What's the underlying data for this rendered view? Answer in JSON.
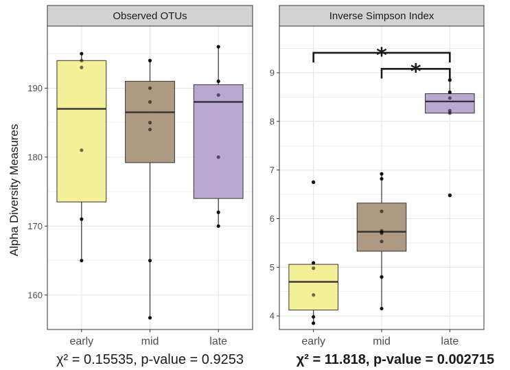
{
  "chart_data": [
    {
      "type": "box",
      "facet_title": "Observed OTUs",
      "ylabel": "Alpha Diversity Measures",
      "categories": [
        "early",
        "mid",
        "late"
      ],
      "ylim": [
        155,
        199
      ],
      "yticks": [
        160,
        170,
        180,
        190
      ],
      "grid": true,
      "colors": [
        "#f2ee8c",
        "#a58f74",
        "#b49ecc"
      ],
      "boxes": [
        {
          "name": "early",
          "whisker_low": 165,
          "q1": 173.5,
          "median": 187,
          "q3": 194,
          "whisker_high": 195
        },
        {
          "name": "mid",
          "whisker_low": 156.7,
          "q1": 179.2,
          "median": 186.5,
          "q3": 191,
          "whisker_high": 194
        },
        {
          "name": "late",
          "whisker_low": 170,
          "q1": 174,
          "median": 188,
          "q3": 190.5,
          "whisker_high": 196
        }
      ],
      "points": [
        {
          "category": "early",
          "values": [
            195,
            194,
            193,
            181,
            171,
            165
          ]
        },
        {
          "category": "mid",
          "values": [
            194,
            190,
            188,
            185,
            184,
            165,
            156.7
          ]
        },
        {
          "category": "late",
          "values": [
            196,
            191,
            189,
            180,
            172,
            170
          ]
        }
      ],
      "stat_label": "χ² = 0.15535, p-value = 0.9253",
      "stat_bold": false
    },
    {
      "type": "box",
      "facet_title": "Inverse Simpson Index",
      "categories": [
        "early",
        "mid",
        "late"
      ],
      "ylim": [
        3.72,
        9.96
      ],
      "yticks": [
        4,
        5,
        6,
        7,
        8,
        9
      ],
      "grid": true,
      "colors": [
        "#f2ee8c",
        "#a58f74",
        "#b49ecc"
      ],
      "boxes": [
        {
          "name": "early",
          "whisker_low": 3.85,
          "q1": 4.12,
          "median": 4.7,
          "q3": 5.06,
          "whisker_high": 5.08
        },
        {
          "name": "mid",
          "whisker_low": 4.15,
          "q1": 5.33,
          "median": 5.73,
          "q3": 6.32,
          "whisker_high": 6.92
        },
        {
          "name": "late",
          "whisker_low": 8.15,
          "q1": 8.17,
          "median": 8.41,
          "q3": 8.57,
          "whisker_high": 8.85
        }
      ],
      "points": [
        {
          "category": "early",
          "values": [
            6.75,
            5.09,
            4.98,
            4.43,
            3.98,
            3.85
          ]
        },
        {
          "category": "mid",
          "values": [
            6.92,
            6.82,
            6.15,
            5.75,
            5.72,
            5.7,
            5.53,
            4.8,
            4.15
          ]
        },
        {
          "category": "late",
          "values": [
            8.85,
            8.6,
            8.48,
            8.22,
            8.17,
            6.48
          ]
        }
      ],
      "outliers": [
        {
          "category": "early",
          "value": 6.75
        },
        {
          "category": "late",
          "value": 6.48
        }
      ],
      "significance": [
        {
          "from": "early",
          "to": "late",
          "y": 9.41,
          "label": "*"
        },
        {
          "from": "mid",
          "to": "late",
          "y": 9.08,
          "label": "*"
        }
      ],
      "stat_label": "χ² = 11.818, p-value = 0.002715",
      "stat_bold": true
    }
  ]
}
